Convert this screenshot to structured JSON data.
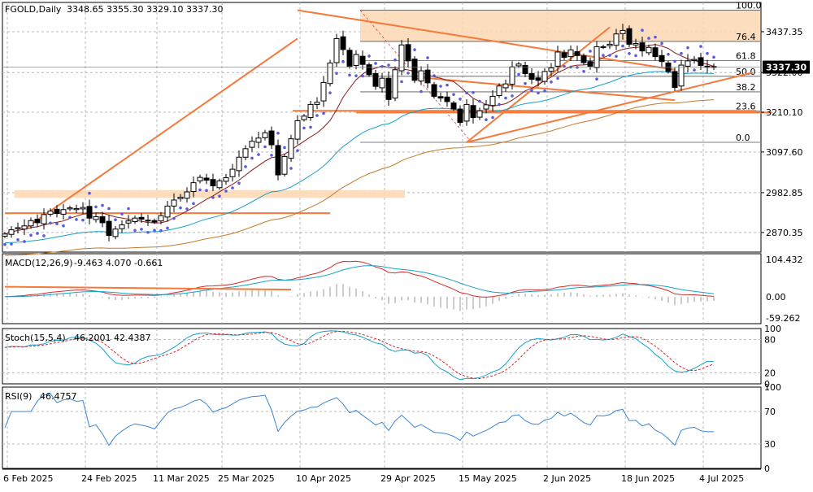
{
  "chart_data": {
    "type": "candlestick",
    "title": "FGOLD,Daily",
    "ohlc_header": "3348.65 3355.30 3329.10 3337.30",
    "last_price": 3337.3,
    "last_price_label": "3337.30",
    "price_axis": {
      "range": [
        2815,
        3520
      ],
      "tick_values": [
        2870.35,
        2982.85,
        3097.6,
        3210.1,
        3322.0,
        3437.35
      ],
      "tick_labels": [
        "2870.35",
        "2982.85",
        "3097.60",
        "3210.10",
        "3322.00",
        "3437.35"
      ]
    },
    "fibonacci": {
      "high": 3498,
      "low": 3125,
      "levels": [
        {
          "label": "100.0",
          "ratio": 1.0
        },
        {
          "label": "76.4",
          "ratio": 0.764
        },
        {
          "label": "61.8",
          "ratio": 0.618
        },
        {
          "label": "50.0",
          "ratio": 0.5
        },
        {
          "label": "38.2",
          "ratio": 0.382
        },
        {
          "label": "23.6",
          "ratio": 0.236
        },
        {
          "label": "0.0",
          "ratio": 0.0
        }
      ]
    },
    "x_labels": [
      {
        "label": "6 Feb 2025",
        "bar": 0
      },
      {
        "label": "24 Feb 2025",
        "bar": 12
      },
      {
        "label": "11 Mar 2025",
        "bar": 23
      },
      {
        "label": "25 Mar 2025",
        "bar": 33
      },
      {
        "label": "10 Apr 2025",
        "bar": 45
      },
      {
        "label": "29 Apr 2025",
        "bar": 58
      },
      {
        "label": "15 May 2025",
        "bar": 70
      },
      {
        "label": "2 Jun 2025",
        "bar": 83
      },
      {
        "label": "18 Jun 2025",
        "bar": 95
      },
      {
        "label": "4 Jul 2025",
        "bar": 107
      }
    ],
    "closes": [
      2866,
      2878,
      2884,
      2889,
      2904,
      2898,
      2921,
      2931,
      2924,
      2935,
      2940,
      2938,
      2941,
      2911,
      2915,
      2898,
      2862,
      2880,
      2892,
      2903,
      2911,
      2908,
      2905,
      2900,
      2918,
      2945,
      2962,
      2970,
      2985,
      3011,
      3026,
      3018,
      3002,
      3016,
      3025,
      3049,
      3083,
      3107,
      3128,
      3137,
      3152,
      3118,
      3033,
      3085,
      3135,
      3186,
      3199,
      3232,
      3238,
      3294,
      3349,
      3418,
      3387,
      3340,
      3373,
      3345,
      3316,
      3283,
      3306,
      3246,
      3330,
      3400,
      3355,
      3300,
      3327,
      3293,
      3255,
      3250,
      3240,
      3219,
      3181,
      3232,
      3195,
      3214,
      3231,
      3255,
      3284,
      3290,
      3338,
      3346,
      3319,
      3303,
      3300,
      3325,
      3335,
      3380,
      3365,
      3386,
      3370,
      3350,
      3340,
      3395,
      3394,
      3402,
      3431,
      3441,
      3402,
      3404,
      3383,
      3393,
      3367,
      3353,
      3325,
      3280,
      3343,
      3355,
      3359,
      3342,
      3337,
      3337
    ],
    "macd": {
      "label": "MACD(12,26,9)",
      "values_label": "-9.463 4.070 -0.661",
      "tick_labels": [
        "104.432",
        "0.00",
        "-59.262"
      ],
      "range": [
        -75,
        120
      ]
    },
    "stoch": {
      "label": "Stoch(15,5,4)",
      "values_label": "46.2001 42.4387",
      "tick_labels": [
        "100",
        "80",
        "20",
        "0"
      ]
    },
    "rsi": {
      "label": "RSI(9)",
      "values_label": "46.4757",
      "tick_labels": [
        "100",
        "70",
        "30",
        "0"
      ]
    },
    "colors": {
      "ma_short": "#8b1a1a",
      "ma_long_1": "#17a2c8",
      "ma_long_2": "#c47a2c",
      "trend_lines": "#f5793a",
      "fib_zone": "#fcd9b6",
      "parabolic_sar": "#5a5adf",
      "macd_main": "#d42b2b",
      "macd_signal": "#17a2c8",
      "stoch_main": "#17a2c8",
      "stoch_signal": "#d42b2b",
      "rsi": "#3a86d4"
    }
  }
}
